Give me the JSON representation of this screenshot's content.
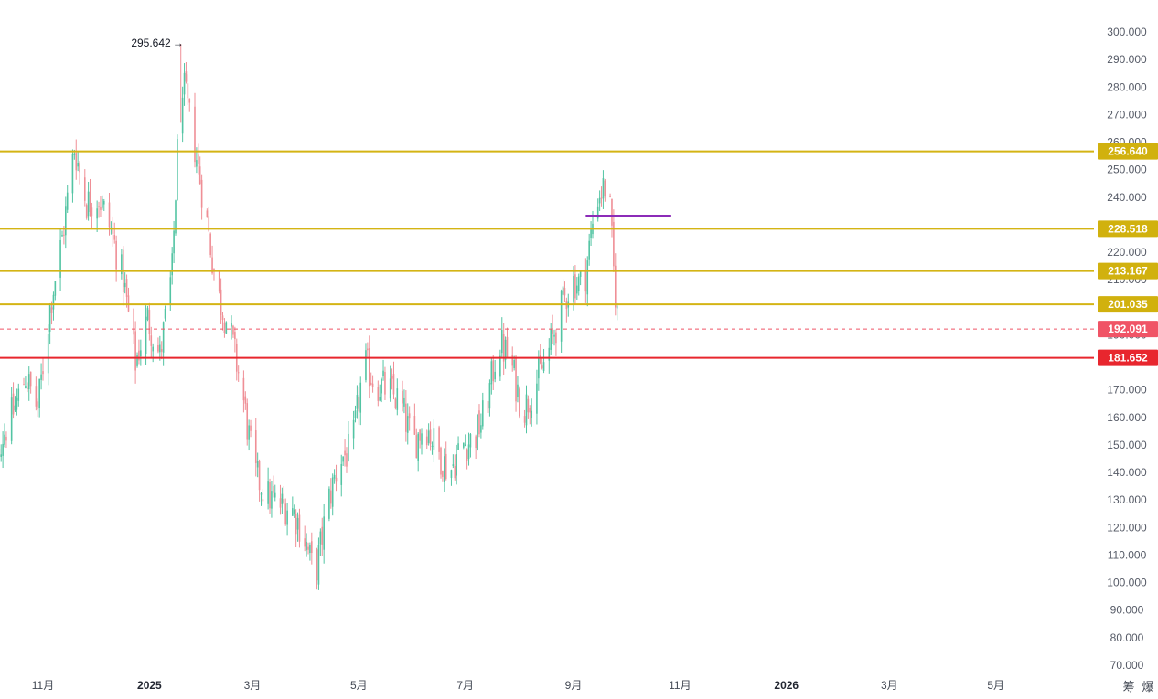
{
  "chart_data": {
    "type": "candlestick",
    "y_axis": {
      "range": [
        65,
        305
      ],
      "ticks": [
        "300.000",
        "290.000",
        "280.000",
        "270.000",
        "260.000",
        "250.000",
        "240.000",
        "230.000",
        "220.000",
        "210.000",
        "200.000",
        "190.000",
        "180.000",
        "170.000",
        "160.000",
        "150.000",
        "140.000",
        "130.000",
        "120.000",
        "110.000",
        "100.000",
        "90.000",
        "80.000",
        "70.000"
      ],
      "tick_values": [
        300,
        290,
        280,
        270,
        260,
        250,
        240,
        230,
        220,
        210,
        200,
        190,
        180,
        170,
        160,
        150,
        140,
        130,
        120,
        110,
        100,
        90,
        80,
        70
      ]
    },
    "x_axis": {
      "labels": [
        {
          "text": "11月",
          "date": "2024-11-01",
          "year": false
        },
        {
          "text": "2025",
          "date": "2025-01-01",
          "year": true
        },
        {
          "text": "3月",
          "date": "2025-03-01",
          "year": false
        },
        {
          "text": "5月",
          "date": "2025-05-01",
          "year": false
        },
        {
          "text": "7月",
          "date": "2025-07-01",
          "year": false
        },
        {
          "text": "9月",
          "date": "2025-09-01",
          "year": false
        },
        {
          "text": "11月",
          "date": "2025-11-01",
          "year": false
        },
        {
          "text": "2026",
          "date": "2026-01-01",
          "year": true
        },
        {
          "text": "3月",
          "date": "2026-03-01",
          "year": false
        },
        {
          "text": "5月",
          "date": "2026-05-01",
          "year": false
        }
      ]
    },
    "price_path": {
      "dates": [
        "2024-10-01",
        "2024-10-08",
        "2024-10-15",
        "2024-10-22",
        "2024-10-29",
        "2024-11-05",
        "2024-11-12",
        "2024-11-19",
        "2024-11-26",
        "2024-12-03",
        "2024-12-10",
        "2024-12-17",
        "2024-12-24",
        "2024-12-31",
        "2025-01-07",
        "2025-01-14",
        "2025-01-19",
        "2025-01-26",
        "2025-02-02",
        "2025-02-09",
        "2025-02-16",
        "2025-02-23",
        "2025-03-02",
        "2025-03-09",
        "2025-03-16",
        "2025-03-23",
        "2025-03-30",
        "2025-04-06",
        "2025-04-13",
        "2025-04-20",
        "2025-04-27",
        "2025-05-04",
        "2025-05-11",
        "2025-05-18",
        "2025-05-25",
        "2025-06-01",
        "2025-06-08",
        "2025-06-15",
        "2025-06-22",
        "2025-06-29",
        "2025-07-06",
        "2025-07-13",
        "2025-07-20",
        "2025-07-27",
        "2025-08-03",
        "2025-08-10",
        "2025-08-17",
        "2025-08-24",
        "2025-08-31",
        "2025-09-07",
        "2025-09-14",
        "2025-09-21",
        "2025-09-24",
        "2025-09-27"
      ],
      "close": [
        137,
        152,
        162,
        175,
        163,
        200,
        225,
        258,
        238,
        240,
        228,
        210,
        180,
        196,
        182,
        213,
        285,
        262,
        235,
        205,
        192,
        170,
        140,
        132,
        128,
        128,
        118,
        102,
        128,
        145,
        148,
        180,
        172,
        170,
        165,
        150,
        158,
        148,
        140,
        150,
        152,
        163,
        188,
        180,
        162,
        172,
        182,
        198,
        210,
        208,
        240,
        245,
        213,
        190
      ]
    },
    "annotations": {
      "peak_label": "295.642",
      "peak": {
        "date": "2025-01-19",
        "value": 295.642
      }
    },
    "horizontal_levels": [
      {
        "label": "256.640",
        "value": 256.64,
        "color": "#d1b10e",
        "line_color": "#d4b414",
        "style": "solid"
      },
      {
        "label": "228.518",
        "value": 228.518,
        "color": "#d1b10e",
        "line_color": "#d4b414",
        "style": "solid"
      },
      {
        "label": "213.167",
        "value": 213.167,
        "color": "#d1b10e",
        "line_color": "#d4b414",
        "style": "solid"
      },
      {
        "label": "201.035",
        "value": 201.035,
        "color": "#d1b10e",
        "line_color": "#d4b414",
        "style": "solid"
      },
      {
        "label": "192.091",
        "value": 192.091,
        "color": "#f05466",
        "line_color": "#f05466",
        "style": "dashed"
      },
      {
        "label": "181.652",
        "value": 181.652,
        "color": "#e8262e",
        "line_color": "#e8262e",
        "style": "solid"
      }
    ],
    "purple_segment": {
      "value": 233.3,
      "from": "2025-09-08",
      "to": "2025-10-27",
      "color": "#8c2bb8"
    },
    "colors": {
      "up": "#53c4a3",
      "down": "#ef8f96",
      "grid": "none"
    }
  },
  "corner": {
    "icon_a": "筹",
    "icon_b": "爆"
  }
}
